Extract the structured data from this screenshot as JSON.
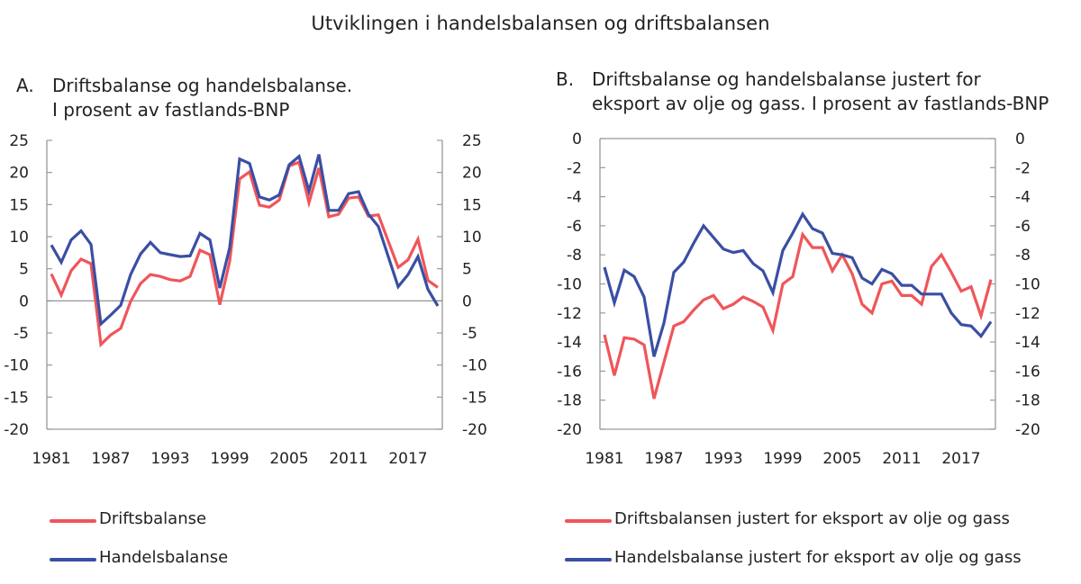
{
  "title": "Utviklingen i handelsbalansen og driftsbalansen",
  "colors": {
    "drifts": "#f0555a",
    "handels": "#3a4fa3",
    "axis": "#999999",
    "zero": "#888888"
  },
  "panels": [
    {
      "letter": "A.",
      "title_line1": "Driftsbalanse og handelsbalanse.",
      "title_line2": "I prosent av fastlands-BNP",
      "legend": [
        "Driftsbalanse",
        "Handelsbalanse"
      ]
    },
    {
      "letter": "B.",
      "title_line1": "Driftsbalanse og handelsbalanse justert for",
      "title_line2": "eksport av olje og gass. I prosent av fastlands-BNP",
      "legend": [
        "Driftsbalansen justert for eksport av olje og gass",
        "Handelsbalanse justert for eksport av olje og gass"
      ]
    }
  ],
  "chart_data": [
    {
      "type": "line",
      "title": "A. Driftsbalanse og handelsbalanse. I prosent av fastlands-BNP",
      "xlabel": "",
      "ylabel": "",
      "x": [
        1981,
        1982,
        1983,
        1984,
        1985,
        1986,
        1987,
        1988,
        1989,
        1990,
        1991,
        1992,
        1993,
        1994,
        1995,
        1996,
        1997,
        1998,
        1999,
        2000,
        2001,
        2002,
        2003,
        2004,
        2005,
        2006,
        2007,
        2008,
        2009,
        2010,
        2011,
        2012,
        2013,
        2014,
        2015,
        2016,
        2017,
        2018,
        2019,
        2020
      ],
      "x_ticks": [
        "1981",
        "1987",
        "1993",
        "1999",
        "2005",
        "2011",
        "2017"
      ],
      "ylim": [
        -20,
        25
      ],
      "y_ticks": [
        25,
        20,
        15,
        10,
        5,
        0,
        -5,
        -10,
        -15,
        -20
      ],
      "y_ticks_right": [
        25,
        20,
        15,
        10,
        5,
        0,
        -5,
        -10,
        -15,
        -20
      ],
      "zero_line": true,
      "grid": false,
      "legend_position": "bottom",
      "series": [
        {
          "name": "Driftsbalanse",
          "color": "#f0555a",
          "values": [
            4.2,
            0.9,
            4.7,
            6.5,
            5.8,
            -6.8,
            -5.3,
            -4.3,
            -0.1,
            2.7,
            4.1,
            3.8,
            3.3,
            3.1,
            3.8,
            7.9,
            7.2,
            -0.6,
            6.2,
            19.0,
            20.1,
            14.9,
            14.6,
            15.7,
            21.0,
            21.6,
            15.3,
            20.7,
            13.1,
            13.5,
            16.0,
            16.2,
            13.2,
            13.4,
            9.3,
            5.2,
            6.4,
            9.6,
            3.2,
            2.1
          ]
        },
        {
          "name": "Handelsbalanse",
          "color": "#3a4fa3",
          "values": [
            8.7,
            6.0,
            9.5,
            10.9,
            8.8,
            -3.6,
            -2.2,
            -0.7,
            4.1,
            7.3,
            9.1,
            7.5,
            7.2,
            6.9,
            7.0,
            10.5,
            9.5,
            2.0,
            8.3,
            22.1,
            21.4,
            16.2,
            15.7,
            16.5,
            21.2,
            22.5,
            17.1,
            22.8,
            14.1,
            14.1,
            16.7,
            17.0,
            13.5,
            11.6,
            6.9,
            2.2,
            4.1,
            6.9,
            1.8,
            -0.8
          ]
        }
      ]
    },
    {
      "type": "line",
      "title": "B. Driftsbalanse og handelsbalanse justert for eksport av olje og gass. I prosent av fastlands-BNP",
      "xlabel": "",
      "ylabel": "",
      "x": [
        1981,
        1982,
        1983,
        1984,
        1985,
        1986,
        1987,
        1988,
        1989,
        1990,
        1991,
        1992,
        1993,
        1994,
        1995,
        1996,
        1997,
        1998,
        1999,
        2000,
        2001,
        2002,
        2003,
        2004,
        2005,
        2006,
        2007,
        2008,
        2009,
        2010,
        2011,
        2012,
        2013,
        2014,
        2015,
        2016,
        2017,
        2018,
        2019,
        2020
      ],
      "x_ticks": [
        "1981",
        "1987",
        "1993",
        "1999",
        "2005",
        "2011",
        "2017"
      ],
      "ylim": [
        -20,
        0
      ],
      "y_ticks": [
        0,
        -2,
        -4,
        -6,
        -8,
        -10,
        -12,
        -14,
        -16,
        -18,
        -20
      ],
      "y_ticks_right": [
        0,
        -2,
        -4,
        -6,
        -8,
        -10,
        -12,
        -14,
        -16,
        -18,
        -20
      ],
      "zero_line": false,
      "grid": false,
      "legend_position": "bottom",
      "series": [
        {
          "name": "Driftsbalansen justert for eksport av olje og gass",
          "color": "#f0555a",
          "values": [
            -13.5,
            -16.3,
            -13.7,
            -13.8,
            -14.2,
            -17.9,
            -15.4,
            -12.9,
            -12.6,
            -11.8,
            -11.1,
            -10.8,
            -11.7,
            -11.4,
            -10.9,
            -11.2,
            -11.6,
            -13.2,
            -10.0,
            -9.5,
            -6.6,
            -7.5,
            -7.5,
            -9.1,
            -8.0,
            -9.3,
            -11.4,
            -12.0,
            -10.0,
            -9.8,
            -10.8,
            -10.8,
            -11.4,
            -8.8,
            -8.0,
            -9.2,
            -10.5,
            -10.2,
            -12.2,
            -9.7
          ]
        },
        {
          "name": "Handelsbalanse justert for eksport av olje og gass",
          "color": "#3a4fa3",
          "values": [
            -8.85,
            -11.3,
            -9.05,
            -9.5,
            -10.9,
            -15.0,
            -12.7,
            -9.2,
            -8.5,
            -7.2,
            -6.0,
            -6.8,
            -7.6,
            -7.84,
            -7.7,
            -8.6,
            -9.1,
            -10.6,
            -7.7,
            -6.5,
            -5.2,
            -6.2,
            -6.5,
            -7.9,
            -8.0,
            -8.2,
            -9.6,
            -10.0,
            -9.0,
            -9.3,
            -10.1,
            -10.1,
            -10.7,
            -10.7,
            -10.7,
            -12.0,
            -12.8,
            -12.9,
            -13.6,
            -12.6
          ]
        }
      ]
    }
  ]
}
